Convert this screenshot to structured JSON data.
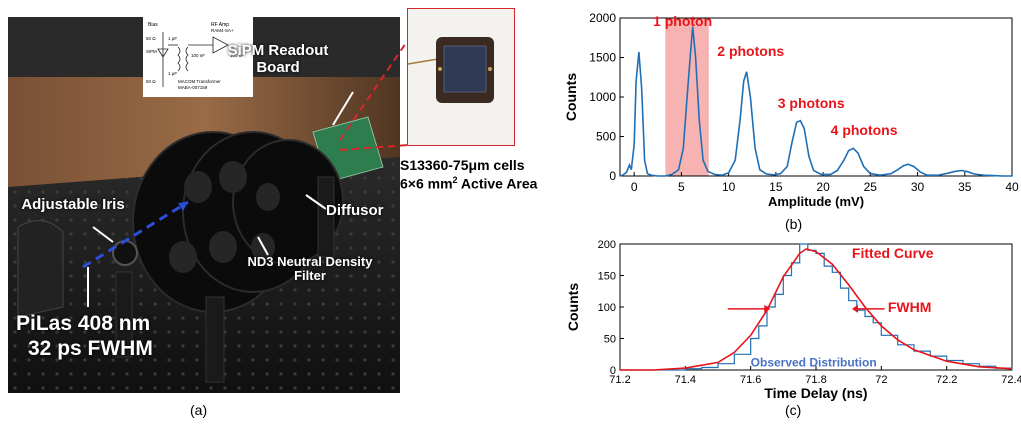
{
  "photo": {
    "labels": {
      "sipm_board": "SiPM Readout Board",
      "adjustable_iris": "Adjustable Iris",
      "diffusor": "Diffusor",
      "nd3_filter": "ND3 Neutral Density Filter",
      "pilas_line1": "PiLas 408 nm",
      "pilas_line2": "32 ps FWHM"
    },
    "schematic": {
      "bias": "Bias",
      "r1": "50 Ω",
      "c1": "1 μF",
      "sipm": "SiPM",
      "r2": "50 Ω",
      "c2": "1 μF",
      "rf_amp": "RF Amp",
      "rf_amp_part": "RAM4-SA+",
      "cap3": "100 nF",
      "cap4": "100 nF",
      "transformer": "MACOM Transformer",
      "transformer_part": "MABA-007159"
    }
  },
  "sensor": {
    "line1": "S13360-75μm cells",
    "line2_prefix": "6×6 mm",
    "line2_sup": "2",
    "line2_suffix": " Active Area"
  },
  "captions": {
    "a": "(a)",
    "b": "(b)",
    "c": "(c)"
  },
  "colors": {
    "series": "#1f6fb5",
    "fit": "#e8141b",
    "annotation": "#e8141b",
    "highlight": "#f7b2b2",
    "observed_label": "#4a72c4",
    "inset_border": "#d9262a"
  },
  "chart_data": [
    {
      "type": "line",
      "xlabel": "Amplitude (mV)",
      "ylabel": "Counts",
      "xlim": [
        -1.5,
        40
      ],
      "ylim": [
        0,
        2000
      ],
      "xticks": [
        0,
        5,
        10,
        15,
        20,
        25,
        30,
        35,
        40
      ],
      "yticks": [
        0,
        500,
        1000,
        1500,
        2000
      ],
      "highlight_band": {
        "x_range": [
          3.3,
          7.9
        ]
      },
      "annotations": [
        "1 photon",
        "2 photons",
        "3 photons",
        "4 photons"
      ],
      "peaks": [
        {
          "x": 0.5,
          "y": 1570
        },
        {
          "x": 6.2,
          "y": 1890
        },
        {
          "x": 11.9,
          "y": 1320
        },
        {
          "x": 17.6,
          "y": 700
        },
        {
          "x": 23.2,
          "y": 350
        },
        {
          "x": 29.0,
          "y": 150
        },
        {
          "x": 34.7,
          "y": 70
        }
      ],
      "series": [
        {
          "values": [
            [
              -1.5,
              0
            ],
            [
              -1.2,
              10
            ],
            [
              -0.8,
              50
            ],
            [
              -0.5,
              140
            ],
            [
              -0.3,
              80
            ],
            [
              0,
              400
            ],
            [
              0.2,
              1200
            ],
            [
              0.5,
              1570
            ],
            [
              0.8,
              1100
            ],
            [
              1.1,
              200
            ],
            [
              1.4,
              30
            ],
            [
              1.8,
              10
            ],
            [
              2.5,
              0
            ],
            [
              3.3,
              0
            ],
            [
              4.0,
              20
            ],
            [
              4.7,
              80
            ],
            [
              5.2,
              350
            ],
            [
              5.6,
              1000
            ],
            [
              6.0,
              1600
            ],
            [
              6.2,
              1890
            ],
            [
              6.5,
              1500
            ],
            [
              6.9,
              700
            ],
            [
              7.3,
              200
            ],
            [
              7.8,
              60
            ],
            [
              8.5,
              20
            ],
            [
              9.3,
              10
            ],
            [
              10.0,
              40
            ],
            [
              10.7,
              200
            ],
            [
              11.2,
              700
            ],
            [
              11.6,
              1200
            ],
            [
              11.9,
              1320
            ],
            [
              12.3,
              1000
            ],
            [
              12.8,
              350
            ],
            [
              13.3,
              80
            ],
            [
              14.0,
              25
            ],
            [
              14.8,
              15
            ],
            [
              15.5,
              30
            ],
            [
              16.2,
              120
            ],
            [
              16.7,
              420
            ],
            [
              17.2,
              680
            ],
            [
              17.6,
              700
            ],
            [
              18.0,
              600
            ],
            [
              18.5,
              250
            ],
            [
              19.0,
              70
            ],
            [
              19.8,
              20
            ],
            [
              20.8,
              20
            ],
            [
              21.5,
              70
            ],
            [
              22.2,
              200
            ],
            [
              22.7,
              320
            ],
            [
              23.2,
              350
            ],
            [
              23.7,
              290
            ],
            [
              24.3,
              120
            ],
            [
              25.0,
              30
            ],
            [
              26.0,
              10
            ],
            [
              27.2,
              30
            ],
            [
              27.9,
              80
            ],
            [
              28.5,
              130
            ],
            [
              29.0,
              150
            ],
            [
              29.6,
              120
            ],
            [
              30.3,
              50
            ],
            [
              31.0,
              10
            ],
            [
              32.2,
              10
            ],
            [
              33.2,
              35
            ],
            [
              34.0,
              60
            ],
            [
              34.7,
              70
            ],
            [
              35.3,
              55
            ],
            [
              36.0,
              25
            ],
            [
              37.0,
              10
            ],
            [
              38.0,
              5
            ],
            [
              39.0,
              0
            ],
            [
              40,
              0
            ]
          ]
        }
      ]
    },
    {
      "type": "line",
      "xlabel": "Time Delay (ns)",
      "ylabel": "Counts",
      "xlim": [
        71.2,
        72.4
      ],
      "ylim": [
        0,
        200
      ],
      "xticks": [
        71.2,
        71.4,
        71.6,
        71.8,
        72.0,
        72.2,
        72.4
      ],
      "xtick_labels": [
        "71.2",
        "71.4",
        "71.6",
        "71.8",
        "72",
        "72.2",
        "72.4"
      ],
      "yticks": [
        0,
        50,
        100,
        150,
        200
      ],
      "fwhm_label": "FWHM",
      "series": [
        {
          "name": "Observed Distribution",
          "values": [
            [
              71.2,
              0
            ],
            [
              71.25,
              0
            ],
            [
              71.3,
              0
            ],
            [
              71.35,
              0
            ],
            [
              71.4,
              2
            ],
            [
              71.45,
              4
            ],
            [
              71.5,
              10
            ],
            [
              71.55,
              25
            ],
            [
              71.6,
              50
            ],
            [
              71.625,
              70
            ],
            [
              71.65,
              100
            ],
            [
              71.675,
              120
            ],
            [
              71.7,
              150
            ],
            [
              71.725,
              170
            ],
            [
              71.75,
              200
            ],
            [
              71.775,
              190
            ],
            [
              71.8,
              185
            ],
            [
              71.825,
              165
            ],
            [
              71.85,
              155
            ],
            [
              71.875,
              130
            ],
            [
              71.9,
              110
            ],
            [
              71.925,
              95
            ],
            [
              71.95,
              85
            ],
            [
              71.975,
              75
            ],
            [
              72.0,
              55
            ],
            [
              72.05,
              40
            ],
            [
              72.1,
              30
            ],
            [
              72.15,
              22
            ],
            [
              72.2,
              15
            ],
            [
              72.25,
              10
            ],
            [
              72.3,
              6
            ],
            [
              72.35,
              3
            ],
            [
              72.4,
              0
            ]
          ]
        },
        {
          "name": "Fitted Curve",
          "values": [
            [
              71.2,
              0
            ],
            [
              71.3,
              0
            ],
            [
              71.4,
              3
            ],
            [
              71.5,
              12
            ],
            [
              71.55,
              28
            ],
            [
              71.6,
              55
            ],
            [
              71.65,
              95
            ],
            [
              71.7,
              148
            ],
            [
              71.75,
              185
            ],
            [
              71.77,
              192
            ],
            [
              71.8,
              188
            ],
            [
              71.85,
              168
            ],
            [
              71.9,
              135
            ],
            [
              71.95,
              100
            ],
            [
              72.0,
              70
            ],
            [
              72.05,
              48
            ],
            [
              72.1,
              32
            ],
            [
              72.2,
              14
            ],
            [
              72.3,
              5
            ],
            [
              72.4,
              2
            ]
          ]
        }
      ]
    }
  ]
}
